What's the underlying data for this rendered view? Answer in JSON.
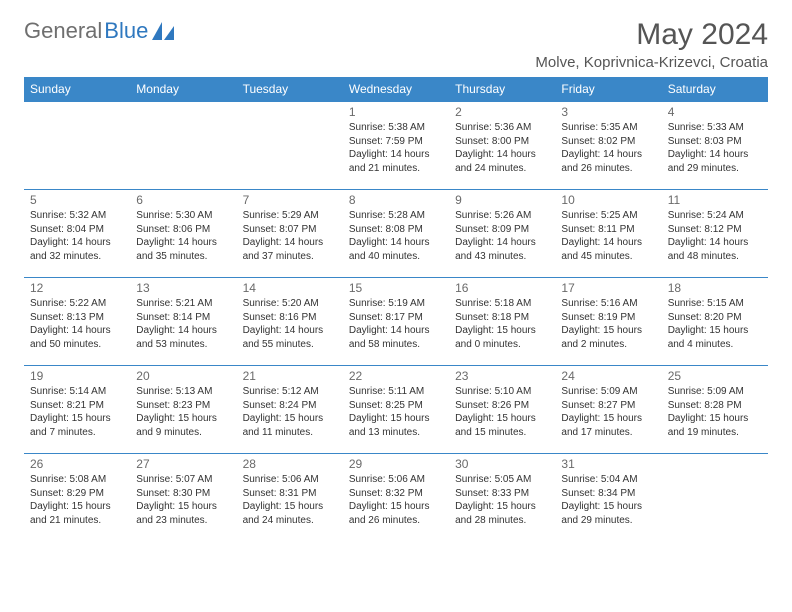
{
  "logo": {
    "text_gray": "General",
    "text_blue": "Blue"
  },
  "title": "May 2024",
  "location": "Molve, Koprivnica-Krizevci, Croatia",
  "colors": {
    "header_bg": "#3a87c8",
    "header_text": "#ffffff",
    "border": "#3a87c8",
    "logo_gray": "#6f6f6f",
    "logo_blue": "#2f78bf",
    "title_gray": "#555555",
    "body_text": "#333333"
  },
  "day_headers": [
    "Sunday",
    "Monday",
    "Tuesday",
    "Wednesday",
    "Thursday",
    "Friday",
    "Saturday"
  ],
  "weeks": [
    [
      null,
      null,
      null,
      {
        "n": "1",
        "sr": "5:38 AM",
        "ss": "7:59 PM",
        "dl": "14 hours and 21 minutes."
      },
      {
        "n": "2",
        "sr": "5:36 AM",
        "ss": "8:00 PM",
        "dl": "14 hours and 24 minutes."
      },
      {
        "n": "3",
        "sr": "5:35 AM",
        "ss": "8:02 PM",
        "dl": "14 hours and 26 minutes."
      },
      {
        "n": "4",
        "sr": "5:33 AM",
        "ss": "8:03 PM",
        "dl": "14 hours and 29 minutes."
      }
    ],
    [
      {
        "n": "5",
        "sr": "5:32 AM",
        "ss": "8:04 PM",
        "dl": "14 hours and 32 minutes."
      },
      {
        "n": "6",
        "sr": "5:30 AM",
        "ss": "8:06 PM",
        "dl": "14 hours and 35 minutes."
      },
      {
        "n": "7",
        "sr": "5:29 AM",
        "ss": "8:07 PM",
        "dl": "14 hours and 37 minutes."
      },
      {
        "n": "8",
        "sr": "5:28 AM",
        "ss": "8:08 PM",
        "dl": "14 hours and 40 minutes."
      },
      {
        "n": "9",
        "sr": "5:26 AM",
        "ss": "8:09 PM",
        "dl": "14 hours and 43 minutes."
      },
      {
        "n": "10",
        "sr": "5:25 AM",
        "ss": "8:11 PM",
        "dl": "14 hours and 45 minutes."
      },
      {
        "n": "11",
        "sr": "5:24 AM",
        "ss": "8:12 PM",
        "dl": "14 hours and 48 minutes."
      }
    ],
    [
      {
        "n": "12",
        "sr": "5:22 AM",
        "ss": "8:13 PM",
        "dl": "14 hours and 50 minutes."
      },
      {
        "n": "13",
        "sr": "5:21 AM",
        "ss": "8:14 PM",
        "dl": "14 hours and 53 minutes."
      },
      {
        "n": "14",
        "sr": "5:20 AM",
        "ss": "8:16 PM",
        "dl": "14 hours and 55 minutes."
      },
      {
        "n": "15",
        "sr": "5:19 AM",
        "ss": "8:17 PM",
        "dl": "14 hours and 58 minutes."
      },
      {
        "n": "16",
        "sr": "5:18 AM",
        "ss": "8:18 PM",
        "dl": "15 hours and 0 minutes."
      },
      {
        "n": "17",
        "sr": "5:16 AM",
        "ss": "8:19 PM",
        "dl": "15 hours and 2 minutes."
      },
      {
        "n": "18",
        "sr": "5:15 AM",
        "ss": "8:20 PM",
        "dl": "15 hours and 4 minutes."
      }
    ],
    [
      {
        "n": "19",
        "sr": "5:14 AM",
        "ss": "8:21 PM",
        "dl": "15 hours and 7 minutes."
      },
      {
        "n": "20",
        "sr": "5:13 AM",
        "ss": "8:23 PM",
        "dl": "15 hours and 9 minutes."
      },
      {
        "n": "21",
        "sr": "5:12 AM",
        "ss": "8:24 PM",
        "dl": "15 hours and 11 minutes."
      },
      {
        "n": "22",
        "sr": "5:11 AM",
        "ss": "8:25 PM",
        "dl": "15 hours and 13 minutes."
      },
      {
        "n": "23",
        "sr": "5:10 AM",
        "ss": "8:26 PM",
        "dl": "15 hours and 15 minutes."
      },
      {
        "n": "24",
        "sr": "5:09 AM",
        "ss": "8:27 PM",
        "dl": "15 hours and 17 minutes."
      },
      {
        "n": "25",
        "sr": "5:09 AM",
        "ss": "8:28 PM",
        "dl": "15 hours and 19 minutes."
      }
    ],
    [
      {
        "n": "26",
        "sr": "5:08 AM",
        "ss": "8:29 PM",
        "dl": "15 hours and 21 minutes."
      },
      {
        "n": "27",
        "sr": "5:07 AM",
        "ss": "8:30 PM",
        "dl": "15 hours and 23 minutes."
      },
      {
        "n": "28",
        "sr": "5:06 AM",
        "ss": "8:31 PM",
        "dl": "15 hours and 24 minutes."
      },
      {
        "n": "29",
        "sr": "5:06 AM",
        "ss": "8:32 PM",
        "dl": "15 hours and 26 minutes."
      },
      {
        "n": "30",
        "sr": "5:05 AM",
        "ss": "8:33 PM",
        "dl": "15 hours and 28 minutes."
      },
      {
        "n": "31",
        "sr": "5:04 AM",
        "ss": "8:34 PM",
        "dl": "15 hours and 29 minutes."
      },
      null
    ]
  ],
  "labels": {
    "sunrise": "Sunrise:",
    "sunset": "Sunset:",
    "daylight": "Daylight:"
  }
}
